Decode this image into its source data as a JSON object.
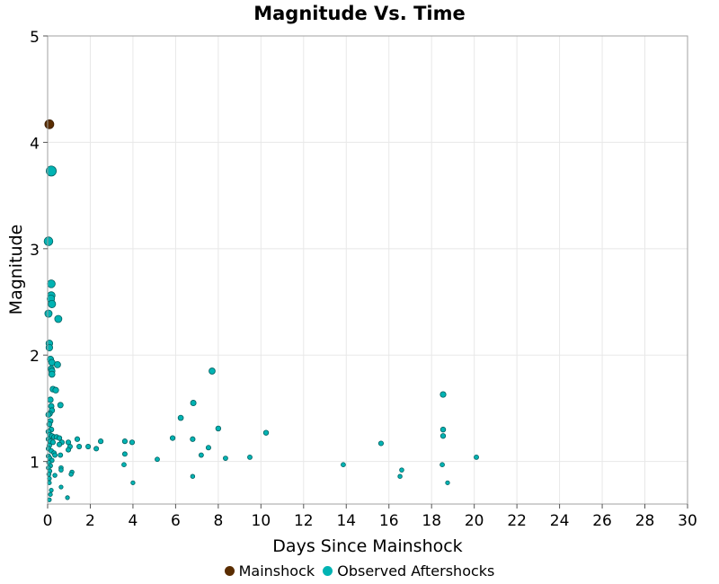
{
  "chart_data": {
    "type": "scatter",
    "title": "Magnitude Vs. Time",
    "xlabel": "Days Since Mainshock",
    "ylabel": "Magnitude",
    "xlim": [
      0,
      30
    ],
    "ylim": [
      0.6,
      5
    ],
    "xticks": [
      0,
      2,
      4,
      6,
      8,
      10,
      12,
      14,
      16,
      18,
      20,
      22,
      24,
      26,
      28,
      30
    ],
    "yticks": [
      1,
      2,
      3,
      4,
      5
    ],
    "grid": true,
    "legend_position": "bottom",
    "series": [
      {
        "name": "Mainshock",
        "color": "#5a2d00",
        "points": [
          [
            0.08,
            4.17
          ]
        ]
      },
      {
        "name": "Observed Aftershocks",
        "color": "#00b3b3",
        "points": [
          [
            0.17,
            3.73
          ],
          [
            0.04,
            3.07
          ],
          [
            0.17,
            2.67
          ],
          [
            0.17,
            2.56
          ],
          [
            0.15,
            2.53
          ],
          [
            0.2,
            2.48
          ],
          [
            0.04,
            2.39
          ],
          [
            0.5,
            2.34
          ],
          [
            0.08,
            2.11
          ],
          [
            0.08,
            2.07
          ],
          [
            0.13,
            1.96
          ],
          [
            0.2,
            1.93
          ],
          [
            0.46,
            1.91
          ],
          [
            0.17,
            1.87
          ],
          [
            0.2,
            1.85
          ],
          [
            0.2,
            1.82
          ],
          [
            0.25,
            1.68
          ],
          [
            0.38,
            1.67
          ],
          [
            0.13,
            1.58
          ],
          [
            0.6,
            1.53
          ],
          [
            0.17,
            1.52
          ],
          [
            0.2,
            1.48
          ],
          [
            0.1,
            1.45
          ],
          [
            0.04,
            1.44
          ],
          [
            0.13,
            1.38
          ],
          [
            0.08,
            1.35
          ],
          [
            0.17,
            1.3
          ],
          [
            0.04,
            1.28
          ],
          [
            0.1,
            1.25
          ],
          [
            0.2,
            1.24
          ],
          [
            0.3,
            1.23
          ],
          [
            0.42,
            1.23
          ],
          [
            0.55,
            1.22
          ],
          [
            0.04,
            1.21
          ],
          [
            0.13,
            1.19
          ],
          [
            0.25,
            1.18
          ],
          [
            0.08,
            1.15
          ],
          [
            0.04,
            1.12
          ],
          [
            0.17,
            1.1
          ],
          [
            0.3,
            1.08
          ],
          [
            0.34,
            1.06
          ],
          [
            0.04,
            1.05
          ],
          [
            0.1,
            1.03
          ],
          [
            0.2,
            1.01
          ],
          [
            0.06,
            0.99
          ],
          [
            0.13,
            0.96
          ],
          [
            0.04,
            0.94
          ],
          [
            0.1,
            0.91
          ],
          [
            0.06,
            0.88
          ],
          [
            0.34,
            0.87
          ],
          [
            0.08,
            0.84
          ],
          [
            0.08,
            0.8
          ],
          [
            0.17,
            0.73
          ],
          [
            0.13,
            0.69
          ],
          [
            0.08,
            0.64
          ],
          [
            0.97,
            1.18
          ],
          [
            1.05,
            1.14
          ],
          [
            0.97,
            1.11
          ],
          [
            1.39,
            1.21
          ],
          [
            1.48,
            1.14
          ],
          [
            1.9,
            1.14
          ],
          [
            2.28,
            1.12
          ],
          [
            2.49,
            1.19
          ],
          [
            0.67,
            1.18
          ],
          [
            0.55,
            1.16
          ],
          [
            0.6,
            1.06
          ],
          [
            0.63,
            0.94
          ],
          [
            0.63,
            0.92
          ],
          [
            1.14,
            0.9
          ],
          [
            1.1,
            0.88
          ],
          [
            0.63,
            0.76
          ],
          [
            0.93,
            0.66
          ],
          [
            3.62,
            1.19
          ],
          [
            3.96,
            1.18
          ],
          [
            3.62,
            1.07
          ],
          [
            3.58,
            0.97
          ],
          [
            4.0,
            0.8
          ],
          [
            5.14,
            1.02
          ],
          [
            5.86,
            1.22
          ],
          [
            6.24,
            1.41
          ],
          [
            6.83,
            1.55
          ],
          [
            6.8,
            1.21
          ],
          [
            6.8,
            0.86
          ],
          [
            7.2,
            1.06
          ],
          [
            7.54,
            1.13
          ],
          [
            7.71,
            1.85
          ],
          [
            8.0,
            1.31
          ],
          [
            8.34,
            1.03
          ],
          [
            9.48,
            1.04
          ],
          [
            10.24,
            1.27
          ],
          [
            13.86,
            0.97
          ],
          [
            15.63,
            1.17
          ],
          [
            16.6,
            0.92
          ],
          [
            16.52,
            0.86
          ],
          [
            18.54,
            1.63
          ],
          [
            18.54,
            1.3
          ],
          [
            18.54,
            1.24
          ],
          [
            18.5,
            0.97
          ],
          [
            18.75,
            0.8
          ],
          [
            20.1,
            1.04
          ]
        ]
      }
    ]
  }
}
